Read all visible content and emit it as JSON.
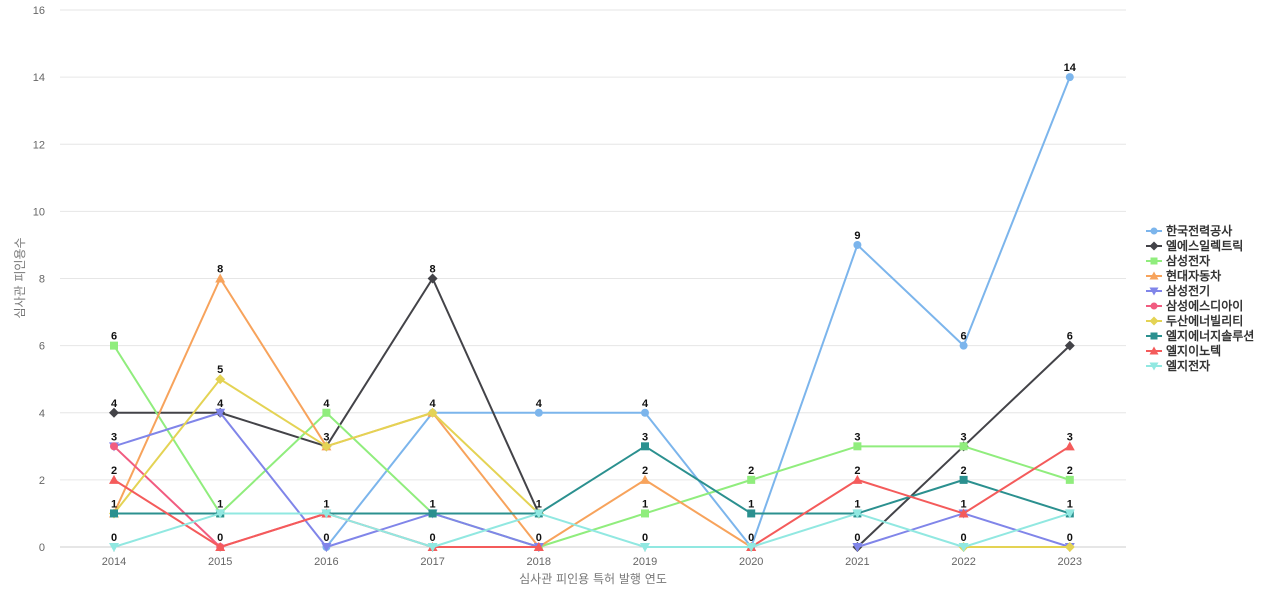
{
  "chart_data": {
    "type": "line",
    "title": "",
    "xlabel": "심사관 피인용 특허 발행 연도",
    "ylabel": "심사관 피인용수",
    "x": [
      "2014",
      "2015",
      "2016",
      "2017",
      "2018",
      "2019",
      "2020",
      "2021",
      "2022",
      "2023"
    ],
    "ylim": [
      0,
      16
    ],
    "yticks": [
      0,
      2,
      4,
      6,
      8,
      10,
      12,
      14,
      16
    ],
    "grid": true,
    "legend_position": "right",
    "series": [
      {
        "name": "한국전력공사",
        "color": "#7cb5ec",
        "marker": "circle",
        "values": [
          null,
          null,
          0,
          4,
          4,
          4,
          0,
          9,
          6,
          14
        ],
        "labels": [
          null,
          null,
          null,
          null,
          "4",
          "4",
          null,
          "9",
          "6",
          "14"
        ]
      },
      {
        "name": "엘에스일렉트릭",
        "color": "#434348",
        "marker": "diamond",
        "values": [
          4,
          4,
          3,
          8,
          1,
          null,
          null,
          0,
          3,
          6
        ],
        "labels": [
          "4",
          "4",
          null,
          "8",
          null,
          null,
          null,
          null,
          null,
          "6"
        ]
      },
      {
        "name": "삼성전자",
        "color": "#90ed7d",
        "marker": "square",
        "values": [
          6,
          1,
          4,
          1,
          0,
          1,
          2,
          3,
          3,
          2
        ],
        "labels": [
          "6",
          null,
          "4",
          null,
          null,
          "1",
          "2",
          "3",
          "3",
          "2"
        ]
      },
      {
        "name": "현대자동차",
        "color": "#f7a35c",
        "marker": "triangle",
        "values": [
          1,
          8,
          3,
          4,
          0,
          2,
          0,
          null,
          null,
          null
        ],
        "labels": [
          null,
          "8",
          "3",
          null,
          null,
          "2",
          null,
          null,
          null,
          null
        ]
      },
      {
        "name": "삼성전기",
        "color": "#8085e9",
        "marker": "triangle-down",
        "values": [
          3,
          4,
          0,
          1,
          0,
          null,
          null,
          0,
          1,
          0
        ],
        "labels": [
          null,
          null,
          "0",
          null,
          null,
          null,
          null,
          "0",
          null,
          null
        ]
      },
      {
        "name": "삼성에스디아이",
        "color": "#f15c80",
        "marker": "circle",
        "values": [
          3,
          0,
          1,
          null,
          null,
          null,
          null,
          null,
          null,
          null
        ],
        "labels": [
          "3",
          null,
          null,
          null,
          null,
          null,
          null,
          null,
          null,
          null
        ]
      },
      {
        "name": "두산에너빌리티",
        "color": "#e4d354",
        "marker": "diamond",
        "values": [
          1,
          5,
          3,
          4,
          1,
          null,
          null,
          null,
          0,
          0
        ],
        "labels": [
          null,
          "5",
          null,
          "4",
          null,
          null,
          null,
          null,
          "0",
          "0"
        ]
      },
      {
        "name": "엘지에너지솔루션",
        "color": "#2b908f",
        "marker": "square",
        "values": [
          1,
          1,
          1,
          1,
          1,
          3,
          1,
          1,
          2,
          1
        ],
        "labels": [
          "1",
          "1",
          "1",
          "1",
          "1",
          "3",
          "1",
          "1",
          "2",
          "1"
        ]
      },
      {
        "name": "엘지이노텍",
        "color": "#f45b5b",
        "marker": "triangle",
        "values": [
          2,
          0,
          1,
          0,
          0,
          null,
          0,
          2,
          1,
          3
        ],
        "labels": [
          "2",
          "0",
          null,
          "0",
          "0",
          null,
          "0",
          "2",
          "1",
          "3"
        ]
      },
      {
        "name": "엘지전자",
        "color": "#91e8e1",
        "marker": "triangle-down",
        "values": [
          0,
          1,
          1,
          0,
          1,
          0,
          0,
          1,
          0,
          1
        ],
        "labels": [
          "0",
          null,
          null,
          null,
          null,
          "0",
          null,
          null,
          null,
          null
        ]
      }
    ]
  }
}
